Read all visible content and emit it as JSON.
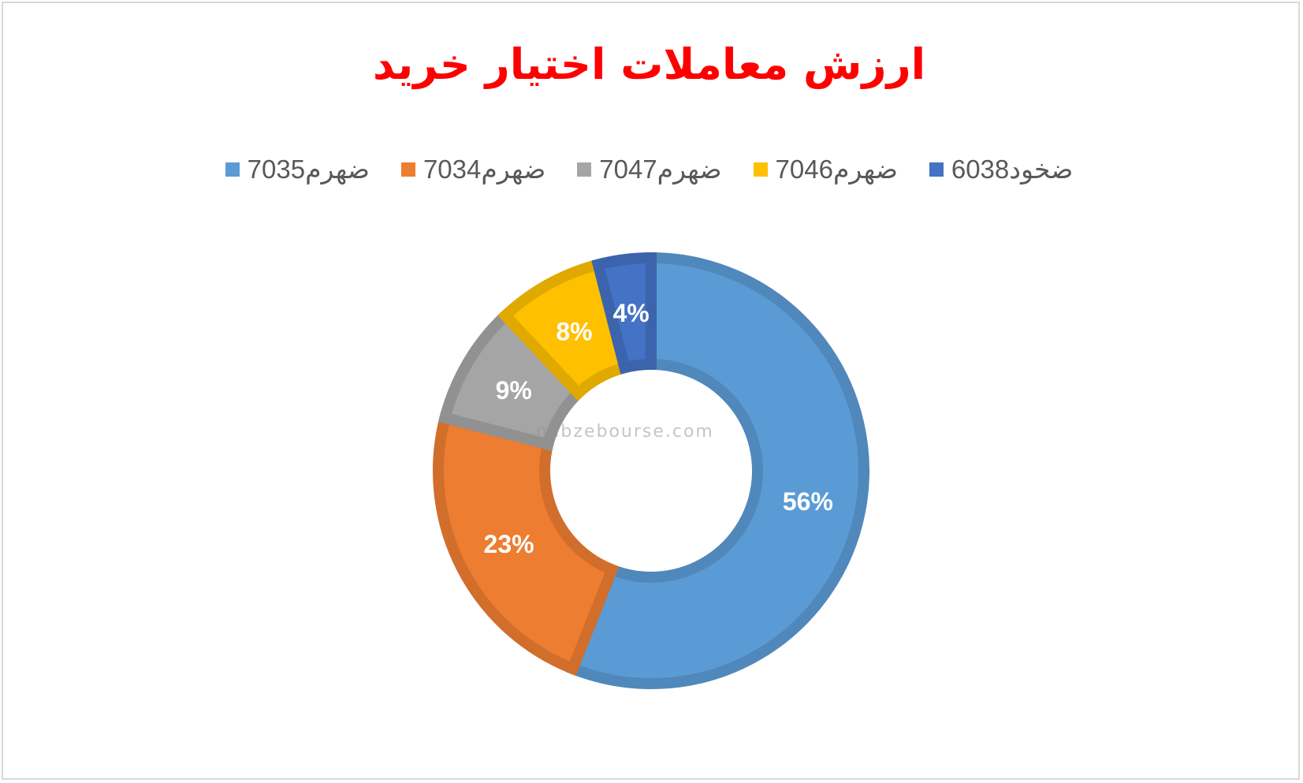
{
  "chart_data": {
    "type": "pie",
    "variant": "donut",
    "title": "ارزش معاملات اختیار خرید",
    "legend_position": "top",
    "series": [
      {
        "name": "ضهرم7035",
        "value": 56,
        "label": "56%",
        "color": "#5b9bd5"
      },
      {
        "name": "ضهرم7034",
        "value": 23,
        "label": "23%",
        "color": "#ed7d31"
      },
      {
        "name": "ضهرم7047",
        "value": 9,
        "label": "9%",
        "color": "#a5a5a5"
      },
      {
        "name": "ضهرم7046",
        "value": 8,
        "label": "8%",
        "color": "#ffc000"
      },
      {
        "name": "ضخود6038",
        "value": 4,
        "label": "4%",
        "color": "#4472c4"
      }
    ]
  },
  "watermark": {
    "text": "nabzebourse.com"
  }
}
